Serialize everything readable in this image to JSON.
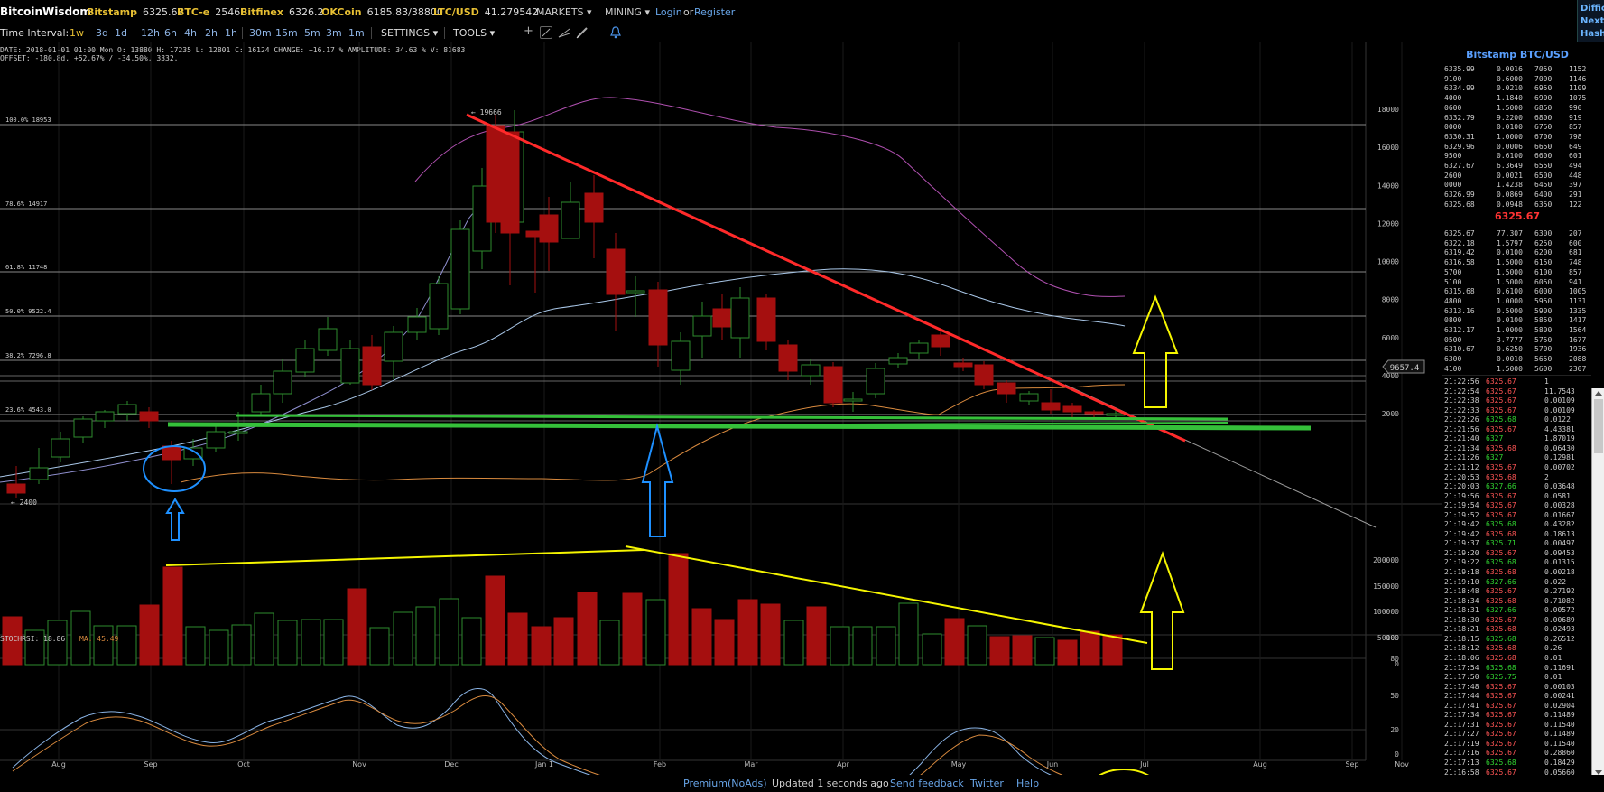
{
  "header": {
    "brand": "BitcoinWisdom",
    "markets": [
      {
        "name": "Bitstamp",
        "price": "6325.67"
      },
      {
        "name": "BTC-e",
        "price": "2546"
      },
      {
        "name": "Bitfinex",
        "price": "6326.2"
      },
      {
        "name": "OKCoin",
        "price": "6185.83/38800"
      },
      {
        "name": "LTC/USD",
        "price": "41.279542"
      }
    ],
    "menus": [
      "MARKETS",
      "MINING"
    ],
    "login": "Login",
    "or": "or",
    "register": "Register",
    "side_widget": [
      "Diffic",
      "Next",
      "Hash"
    ]
  },
  "toolbar": {
    "label": "Time Interval:",
    "intervals": [
      "1w",
      "3d",
      "1d",
      "12h",
      "6h",
      "4h",
      "2h",
      "1h",
      "30m",
      "15m",
      "5m",
      "3m",
      "1m"
    ],
    "active": "1w",
    "settings": "SETTINGS",
    "tools": "TOOLS",
    "plus": "+"
  },
  "info": {
    "line1": "DATE: 2018-01-01 01:00 Mon   O: 13880   H: 17235   L: 12801   C: 16124   CHANGE: +16.17 %   AMPLITUDE: 34.63 %   V: 81683",
    "line2": "OFFSET: -180.8d, +52.67% / -34.50%, 3332."
  },
  "chart": {
    "price_axis": [
      "18000",
      "16000",
      "14000",
      "12000",
      "10000",
      "8000",
      "6000",
      "4000",
      "2000"
    ],
    "volume_axis": [
      "200000",
      "150000",
      "100000",
      "50000",
      "0"
    ],
    "rsi_axis": [
      "100",
      "80",
      "50",
      "20",
      "0"
    ],
    "months": [
      "Aug",
      "Sep",
      "Oct",
      "Nov",
      "Dec",
      "Jan 1",
      "Feb",
      "Mar",
      "Apr",
      "May",
      "Jun",
      "Jul",
      "Aug",
      "Sep",
      "Nov"
    ],
    "fib": [
      "100.0% 18953",
      "78.6% 14917",
      "61.8% 11748",
      "50.0% 9522.4",
      "38.2% 7296.8",
      "23.6% 4543.0"
    ],
    "high_label": "← 19666",
    "low_label": "← 2400",
    "cursor_price": "9657.4",
    "stochrsi_label": "STOCHRSI: 18.86",
    "ma_label": "MA: 45.49"
  },
  "book": {
    "title": "Bitstamp BTC/USD",
    "asks": [
      [
        "6335.99",
        "0.0016",
        "7050",
        "1152"
      ],
      [
        "9100",
        "0.6000",
        "7000",
        "1146"
      ],
      [
        "6334.99",
        "0.0210",
        "6950",
        "1109"
      ],
      [
        "4000",
        "1.1840",
        "6900",
        "1075"
      ],
      [
        "0600",
        "1.5000",
        "6850",
        "990"
      ],
      [
        "6332.79",
        "9.2200",
        "6800",
        "919"
      ],
      [
        "0000",
        "0.0100",
        "6750",
        "857"
      ],
      [
        "6330.31",
        "1.0000",
        "6700",
        "798"
      ],
      [
        "6329.96",
        "0.0006",
        "6650",
        "649"
      ],
      [
        "9500",
        "0.6100",
        "6600",
        "601"
      ],
      [
        "6327.67",
        "6.3649",
        "6550",
        "494"
      ],
      [
        "2600",
        "0.0021",
        "6500",
        "448"
      ],
      [
        "0000",
        "1.4238",
        "6450",
        "397"
      ],
      [
        "6326.99",
        "0.0869",
        "6400",
        "291"
      ],
      [
        "6325.68",
        "0.0948",
        "6350",
        "122"
      ]
    ],
    "mid": "6325.67",
    "bids": [
      [
        "6325.67",
        "77.307",
        "6300",
        "207"
      ],
      [
        "6322.18",
        "1.5797",
        "6250",
        "600"
      ],
      [
        "6319.42",
        "0.0100",
        "6200",
        "681"
      ],
      [
        "6316.58",
        "1.5000",
        "6150",
        "748"
      ],
      [
        "5700",
        "1.5000",
        "6100",
        "857"
      ],
      [
        "5100",
        "1.5000",
        "6050",
        "941"
      ],
      [
        "6315.68",
        "0.6100",
        "6000",
        "1005"
      ],
      [
        "4800",
        "1.0000",
        "5950",
        "1131"
      ],
      [
        "6313.16",
        "0.5000",
        "5900",
        "1335"
      ],
      [
        "0800",
        "0.0100",
        "5850",
        "1417"
      ],
      [
        "6312.17",
        "1.0000",
        "5800",
        "1564"
      ],
      [
        "0500",
        "3.7777",
        "5750",
        "1677"
      ],
      [
        "6310.67",
        "0.6250",
        "5700",
        "1936"
      ],
      [
        "6300",
        "0.0010",
        "5650",
        "2088"
      ],
      [
        "4100",
        "1.5000",
        "5600",
        "2307"
      ]
    ]
  },
  "trades": [
    [
      "21:22:56",
      "6325.67",
      "1",
      "dn"
    ],
    [
      "21:22:54",
      "6325.67",
      "11.7543",
      "dn"
    ],
    [
      "21:22:38",
      "6325.67",
      "0.00109",
      "dn"
    ],
    [
      "21:22:33",
      "6325.67",
      "0.00109",
      "dn"
    ],
    [
      "21:22:26",
      "6325.68",
      "0.0122",
      "up"
    ],
    [
      "21:21:56",
      "6325.67",
      "4.43381",
      "dn"
    ],
    [
      "21:21:40",
      "6327",
      "1.87019",
      "up"
    ],
    [
      "21:21:34",
      "6325.68",
      "0.06430",
      "dn"
    ],
    [
      "21:21:26",
      "6327",
      "0.12981",
      "up"
    ],
    [
      "21:21:12",
      "6325.67",
      "0.00702",
      "dn"
    ],
    [
      "21:20:53",
      "6325.68",
      "2",
      "dn"
    ],
    [
      "21:20:03",
      "6327.66",
      "0.03648",
      "up"
    ],
    [
      "21:19:56",
      "6325.67",
      "0.0581",
      "dn"
    ],
    [
      "21:19:54",
      "6325.67",
      "0.00328",
      "dn"
    ],
    [
      "21:19:52",
      "6325.67",
      "0.01667",
      "dn"
    ],
    [
      "21:19:42",
      "6325.68",
      "0.43282",
      "up"
    ],
    [
      "21:19:42",
      "6325.68",
      "0.18613",
      "dn"
    ],
    [
      "21:19:37",
      "6325.71",
      "0.00497",
      "up"
    ],
    [
      "21:19:20",
      "6325.67",
      "0.09453",
      "dn"
    ],
    [
      "21:19:22",
      "6325.68",
      "0.01315",
      "up"
    ],
    [
      "21:19:18",
      "6325.68",
      "0.00218",
      "dn"
    ],
    [
      "21:19:10",
      "6327.66",
      "0.022",
      "up"
    ],
    [
      "21:18:48",
      "6325.67",
      "0.27192",
      "dn"
    ],
    [
      "21:18:34",
      "6325.68",
      "0.71082",
      "dn"
    ],
    [
      "21:18:31",
      "6327.66",
      "0.00572",
      "up"
    ],
    [
      "21:18:30",
      "6325.67",
      "0.00689",
      "dn"
    ],
    [
      "21:18:21",
      "6325.68",
      "0.02493",
      "dn"
    ],
    [
      "21:18:15",
      "6325.68",
      "0.26512",
      "up"
    ],
    [
      "21:18:12",
      "6325.68",
      "0.26",
      "dn"
    ],
    [
      "21:18:06",
      "6325.68",
      "0.01",
      "dn"
    ],
    [
      "21:17:54",
      "6325.68",
      "0.11691",
      "up"
    ],
    [
      "21:17:50",
      "6325.75",
      "0.01",
      "up"
    ],
    [
      "21:17:48",
      "6325.67",
      "0.00103",
      "dn"
    ],
    [
      "21:17:44",
      "6325.67",
      "0.00241",
      "dn"
    ],
    [
      "21:17:41",
      "6325.67",
      "0.02904",
      "dn"
    ],
    [
      "21:17:34",
      "6325.67",
      "0.11489",
      "dn"
    ],
    [
      "21:17:31",
      "6325.67",
      "0.11540",
      "dn"
    ],
    [
      "21:17:27",
      "6325.67",
      "0.11489",
      "dn"
    ],
    [
      "21:17:19",
      "6325.67",
      "0.11540",
      "dn"
    ],
    [
      "21:17:16",
      "6325.67",
      "0.28860",
      "dn"
    ],
    [
      "21:17:13",
      "6325.68",
      "0.18429",
      "up"
    ],
    [
      "21:16:58",
      "6325.67",
      "0.05660",
      "dn"
    ]
  ],
  "footer": {
    "premium": "Premium(NoAds)",
    "updated": "Updated 1 seconds ago",
    "feedback": "Send feedback",
    "twitter": "Twitter",
    "help": "Help"
  },
  "colors": {
    "bull": "#2e8b2e",
    "bear": "#a50f0f",
    "resistance": "#ff2a2a",
    "support": "#35c03a",
    "volume_trend": "#f5f500",
    "annotation_blue": "#1e90ff",
    "annotation_yellow": "#f5f500"
  }
}
